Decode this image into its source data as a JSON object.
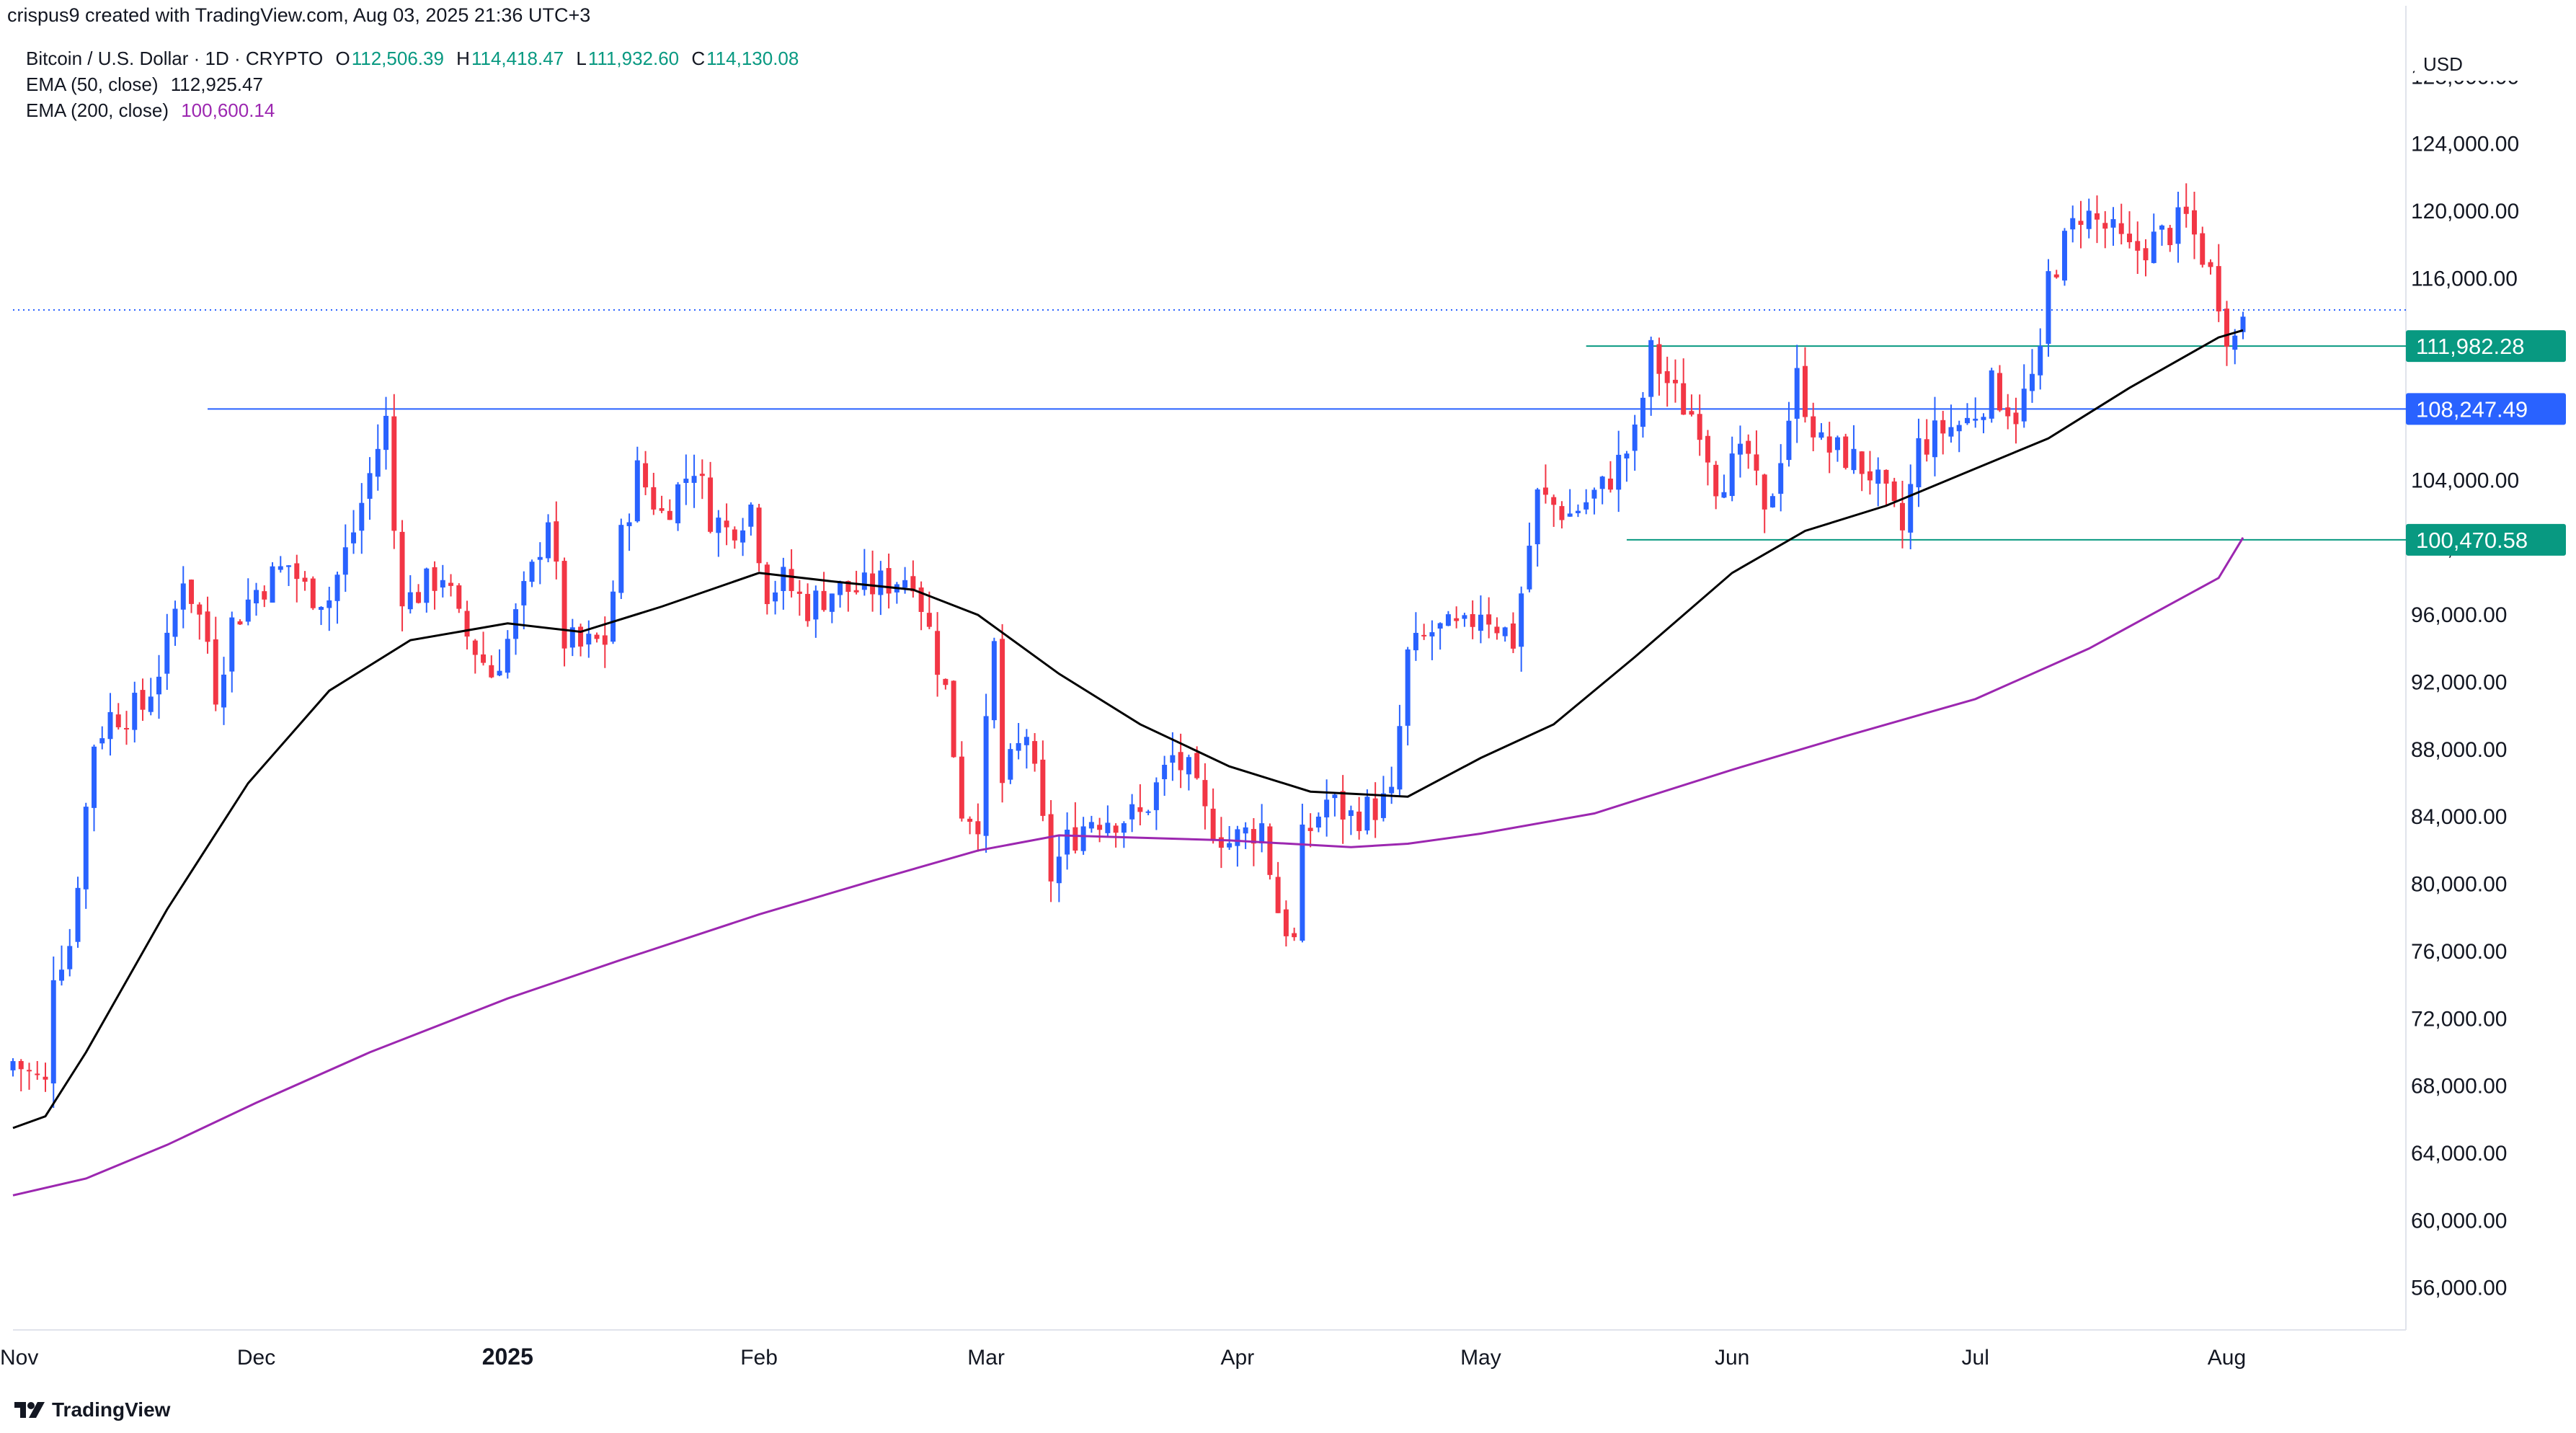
{
  "header": {
    "credit": "crispus9 created with TradingView.com, Aug 03, 2025 21:36 UTC+3"
  },
  "legend": {
    "symbol": "Bitcoin / U.S. Dollar · 1D · CRYPTO",
    "open_label": "O",
    "open": "112,506.39",
    "high_label": "H",
    "high": "114,418.47",
    "low_label": "L",
    "low": "111,932.60",
    "close_label": "C",
    "close": "114,130.08",
    "ema50_label": "EMA (50, close)",
    "ema50_value": "112,925.47",
    "ema200_label": "EMA (200, close)",
    "ema200_value": "100,600.14"
  },
  "currency": "USD",
  "brand": "TradingView",
  "colors": {
    "up": "#2962ff",
    "down": "#f23645",
    "ema50": "#000000",
    "ema200": "#9c27b0",
    "level_green": "#089981",
    "level_blue": "#2962ff"
  },
  "chart_data": {
    "type": "candlestick",
    "x_tick_labels": [
      "Nov",
      "Dec",
      "2025",
      "Feb",
      "Mar",
      "Apr",
      "May",
      "Jun",
      "Jul",
      "Aug"
    ],
    "y_ticks": [
      56000,
      60000,
      64000,
      68000,
      72000,
      76000,
      80000,
      84000,
      88000,
      92000,
      96000,
      100000,
      104000,
      108000,
      112000,
      116000,
      120000,
      124000,
      128000
    ],
    "y_tick_labels": [
      "56,000.00",
      "60,000.00",
      "64,000.00",
      "68,000.00",
      "72,000.00",
      "76,000.00",
      "80,000.00",
      "84,000.00",
      "88,000.00",
      "92,000.00",
      "96,000.00",
      "100,000.00",
      "104,000.00",
      "108,000.00",
      "",
      "116,000.00",
      "120,000.00",
      "124,000.00",
      "128,000.00"
    ],
    "y_range": [
      53500,
      130500
    ],
    "levels": [
      {
        "label": "111,982.28",
        "value": 111982.28,
        "color": "#089981",
        "start": "2025-05-14"
      },
      {
        "label": "108,247.49",
        "value": 108247.49,
        "color": "#2962ff",
        "start": "2024-11-25"
      },
      {
        "label": "100,470.58",
        "value": 100470.58,
        "color": "#089981",
        "start": "2025-05-19"
      }
    ],
    "last_price_line": 114130.08,
    "anchors": [
      [
        "2024-11-01",
        69500
      ],
      [
        "2024-11-05",
        68000
      ],
      [
        "2024-11-06",
        75000
      ],
      [
        "2024-11-08",
        76500
      ],
      [
        "2024-11-11",
        88500
      ],
      [
        "2024-11-13",
        90000
      ],
      [
        "2024-11-17",
        90500
      ],
      [
        "2024-11-20",
        94000
      ],
      [
        "2024-11-22",
        98500
      ],
      [
        "2024-11-25",
        94500
      ],
      [
        "2024-11-26",
        91500
      ],
      [
        "2024-11-28",
        95500
      ],
      [
        "2024-12-01",
        97500
      ],
      [
        "2024-12-05",
        99000
      ],
      [
        "2024-12-07",
        97500
      ],
      [
        "2024-12-10",
        97000
      ],
      [
        "2024-12-13",
        101000
      ],
      [
        "2024-12-16",
        106000
      ],
      [
        "2024-12-17",
        107500
      ],
      [
        "2024-12-18",
        101000
      ],
      [
        "2024-12-19",
        97500
      ],
      [
        "2024-12-20",
        97000
      ],
      [
        "2024-12-24",
        98500
      ],
      [
        "2024-12-26",
        95500
      ],
      [
        "2024-12-30",
        92500
      ],
      [
        "2025-01-01",
        94500
      ],
      [
        "2025-01-04",
        98500
      ],
      [
        "2025-01-06",
        102000
      ],
      [
        "2025-01-08",
        94500
      ],
      [
        "2025-01-10",
        94000
      ],
      [
        "2025-01-13",
        94500
      ],
      [
        "2025-01-15",
        100500
      ],
      [
        "2025-01-17",
        104500
      ],
      [
        "2025-01-20",
        102000
      ],
      [
        "2025-01-22",
        103500
      ],
      [
        "2025-01-24",
        105000
      ],
      [
        "2025-01-26",
        102000
      ],
      [
        "2025-01-28",
        101000
      ],
      [
        "2025-01-31",
        102500
      ],
      [
        "2025-02-02",
        97500
      ],
      [
        "2025-02-04",
        98000
      ],
      [
        "2025-02-07",
        96500
      ],
      [
        "2025-02-10",
        97500
      ],
      [
        "2025-02-14",
        97500
      ],
      [
        "2025-02-20",
        98500
      ],
      [
        "2025-02-24",
        91500
      ],
      [
        "2025-02-26",
        84500
      ],
      [
        "2025-02-28",
        84000
      ],
      [
        "2025-03-02",
        94000
      ],
      [
        "2025-03-03",
        86000
      ],
      [
        "2025-03-06",
        89000
      ],
      [
        "2025-03-09",
        80500
      ],
      [
        "2025-03-11",
        82500
      ],
      [
        "2025-03-14",
        84000
      ],
      [
        "2025-03-17",
        84000
      ],
      [
        "2025-03-20",
        84000
      ],
      [
        "2025-03-24",
        87500
      ],
      [
        "2025-03-26",
        86500
      ],
      [
        "2025-03-28",
        84000
      ],
      [
        "2025-03-31",
        82500
      ],
      [
        "2025-04-02",
        83000
      ],
      [
        "2025-04-04",
        83500
      ],
      [
        "2025-04-06",
        78500
      ],
      [
        "2025-04-08",
        76500
      ],
      [
        "2025-04-09",
        82500
      ],
      [
        "2025-04-12",
        85000
      ],
      [
        "2025-04-15",
        84000
      ],
      [
        "2025-04-20",
        85000
      ],
      [
        "2025-04-22",
        93500
      ],
      [
        "2025-04-25",
        95000
      ],
      [
        "2025-04-29",
        95000
      ],
      [
        "2025-05-01",
        96500
      ],
      [
        "2025-05-05",
        94500
      ],
      [
        "2025-05-08",
        103000
      ],
      [
        "2025-05-12",
        102000
      ],
      [
        "2025-05-16",
        103500
      ],
      [
        "2025-05-20",
        106500
      ],
      [
        "2025-05-22",
        111500
      ],
      [
        "2025-05-25",
        109000
      ],
      [
        "2025-05-28",
        107500
      ],
      [
        "2025-05-30",
        104000
      ],
      [
        "2025-06-03",
        105500
      ],
      [
        "2025-06-05",
        101500
      ],
      [
        "2025-06-09",
        110000
      ],
      [
        "2025-06-12",
        106000
      ],
      [
        "2025-06-15",
        105500
      ],
      [
        "2025-06-18",
        104500
      ],
      [
        "2025-06-22",
        101000
      ],
      [
        "2025-06-24",
        106000
      ],
      [
        "2025-06-27",
        107000
      ],
      [
        "2025-06-30",
        107500
      ],
      [
        "2025-07-03",
        109500
      ],
      [
        "2025-07-06",
        108000
      ],
      [
        "2025-07-09",
        111000
      ],
      [
        "2025-07-10",
        116000
      ],
      [
        "2025-07-13",
        119000
      ],
      [
        "2025-07-14",
        120000
      ],
      [
        "2025-07-17",
        119000
      ],
      [
        "2025-07-20",
        117500
      ],
      [
        "2025-07-24",
        118500
      ],
      [
        "2025-07-27",
        119500
      ],
      [
        "2025-07-29",
        117500
      ],
      [
        "2025-07-31",
        115000
      ],
      [
        "2025-08-01",
        113000
      ],
      [
        "2025-08-02",
        112400
      ],
      [
        "2025-08-03",
        114130
      ]
    ],
    "ema50": [
      [
        "2024-11-01",
        65500
      ],
      [
        "2024-11-05",
        66200
      ],
      [
        "2024-11-10",
        70000
      ],
      [
        "2024-11-20",
        78500
      ],
      [
        "2024-11-30",
        86000
      ],
      [
        "2024-12-10",
        91500
      ],
      [
        "2024-12-20",
        94500
      ],
      [
        "2025-01-01",
        95500
      ],
      [
        "2025-01-10",
        95000
      ],
      [
        "2025-01-20",
        96500
      ],
      [
        "2025-02-01",
        98500
      ],
      [
        "2025-02-10",
        98000
      ],
      [
        "2025-02-20",
        97500
      ],
      [
        "2025-02-28",
        96000
      ],
      [
        "2025-03-10",
        92500
      ],
      [
        "2025-03-20",
        89500
      ],
      [
        "2025-03-31",
        87000
      ],
      [
        "2025-04-10",
        85500
      ],
      [
        "2025-04-22",
        85200
      ],
      [
        "2025-05-01",
        87500
      ],
      [
        "2025-05-10",
        89500
      ],
      [
        "2025-05-20",
        93500
      ],
      [
        "2025-06-01",
        98500
      ],
      [
        "2025-06-10",
        101000
      ],
      [
        "2025-06-20",
        102500
      ],
      [
        "2025-06-30",
        104500
      ],
      [
        "2025-07-10",
        106500
      ],
      [
        "2025-07-20",
        109500
      ],
      [
        "2025-07-31",
        112500
      ],
      [
        "2025-08-03",
        112925
      ]
    ],
    "ema200": [
      [
        "2024-11-01",
        61500
      ],
      [
        "2024-11-10",
        62500
      ],
      [
        "2024-11-20",
        64500
      ],
      [
        "2024-12-01",
        67000
      ],
      [
        "2024-12-15",
        70000
      ],
      [
        "2025-01-01",
        73200
      ],
      [
        "2025-01-15",
        75500
      ],
      [
        "2025-02-01",
        78200
      ],
      [
        "2025-02-15",
        80200
      ],
      [
        "2025-02-28",
        82000
      ],
      [
        "2025-03-10",
        82900
      ],
      [
        "2025-03-31",
        82600
      ],
      [
        "2025-04-15",
        82200
      ],
      [
        "2025-04-22",
        82400
      ],
      [
        "2025-05-01",
        83000
      ],
      [
        "2025-05-15",
        84200
      ],
      [
        "2025-06-01",
        86800
      ],
      [
        "2025-06-15",
        88800
      ],
      [
        "2025-07-01",
        91000
      ],
      [
        "2025-07-15",
        94000
      ],
      [
        "2025-07-31",
        98200
      ],
      [
        "2025-08-03",
        100600
      ]
    ]
  }
}
